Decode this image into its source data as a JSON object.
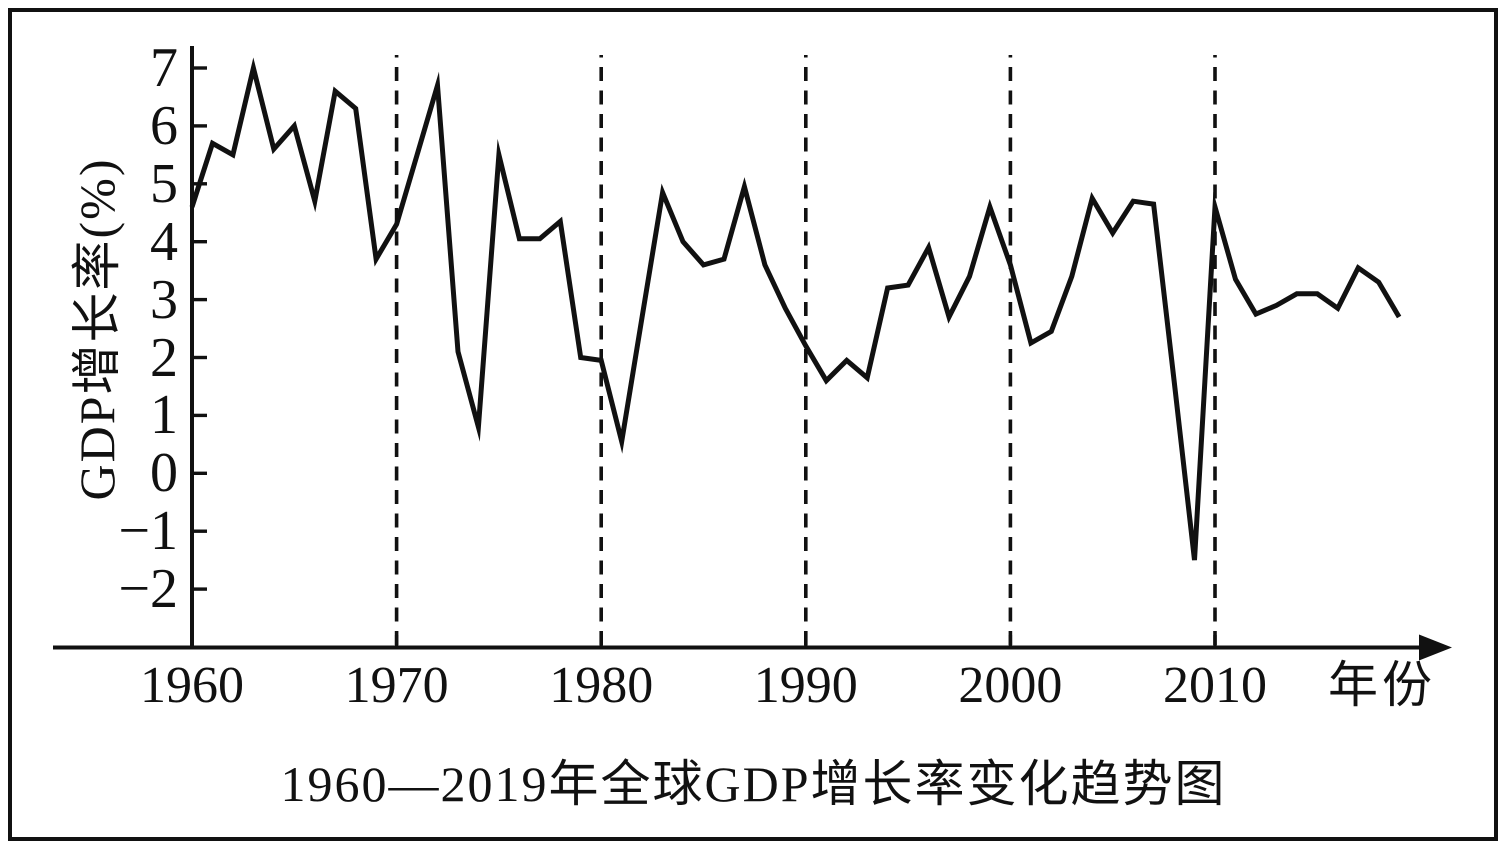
{
  "figure": {
    "background_color": "#ffffff",
    "border_color": "#111111"
  },
  "chart_data": {
    "type": "line",
    "title": "1960—2019年全球GDP增长率变化趋势图",
    "ylabel": "GDP增长率(%)",
    "xlabel": "年份",
    "line_color": "#111111",
    "grid": "dashed vertical lines at decades",
    "legend": "none",
    "x_start": 1960,
    "x_end": 2019,
    "ylim": [
      -2,
      7
    ],
    "yticks": [
      7,
      6,
      5,
      4,
      3,
      2,
      1,
      0,
      -1,
      -2
    ],
    "ytick_labels": [
      "7",
      "6",
      "5",
      "4",
      "3",
      "2",
      "1",
      "0",
      "−1",
      "−2"
    ],
    "xticks": [
      1960,
      1970,
      1980,
      1990,
      2000,
      2010
    ],
    "xtick_labels": [
      "1960",
      "1970",
      "1980",
      "1990",
      "2000",
      "2010"
    ],
    "dashed_gridlines_at": [
      1970,
      1980,
      1990,
      2000,
      2010
    ],
    "years": [
      1960,
      1961,
      1962,
      1963,
      1964,
      1965,
      1966,
      1967,
      1968,
      1969,
      1970,
      1971,
      1972,
      1973,
      1974,
      1975,
      1976,
      1977,
      1978,
      1979,
      1980,
      1981,
      1982,
      1983,
      1984,
      1985,
      1986,
      1987,
      1988,
      1989,
      1990,
      1991,
      1992,
      1993,
      1994,
      1995,
      1996,
      1997,
      1998,
      1999,
      2000,
      2001,
      2002,
      2003,
      2004,
      2005,
      2006,
      2007,
      2008,
      2009,
      2010,
      2011,
      2012,
      2013,
      2014,
      2015,
      2016,
      2017,
      2018,
      2019
    ],
    "values": [
      4.6,
      5.7,
      5.5,
      7.0,
      5.6,
      6.0,
      4.7,
      6.6,
      6.3,
      3.7,
      4.3,
      5.5,
      6.7,
      2.1,
      0.8,
      5.5,
      4.05,
      4.05,
      4.35,
      2.0,
      1.95,
      0.55,
      2.7,
      4.85,
      4.0,
      3.6,
      3.7,
      4.95,
      3.6,
      2.85,
      2.2,
      1.6,
      1.95,
      1.65,
      3.2,
      3.25,
      3.9,
      2.7,
      3.4,
      4.6,
      3.6,
      2.25,
      2.45,
      3.4,
      4.75,
      4.15,
      4.7,
      4.65,
      1.6,
      -1.5,
      4.6,
      3.35,
      2.75,
      2.9,
      3.1,
      3.1,
      2.85,
      3.55,
      3.3,
      2.7
    ]
  }
}
